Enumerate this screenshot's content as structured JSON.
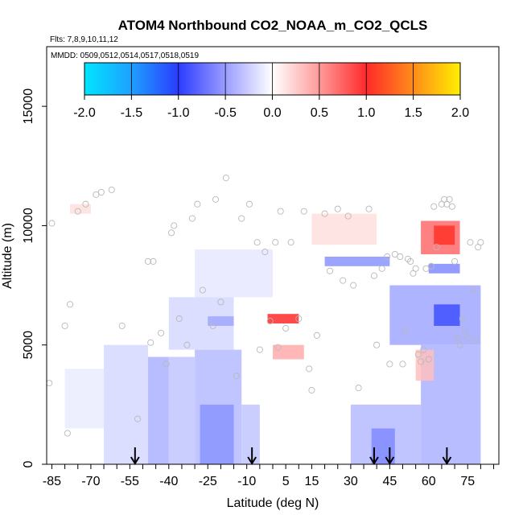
{
  "chart_data": {
    "type": "heatmap",
    "title": "ATOM4 Northbound CO2_NOAA_m_CO2_QCLS",
    "flights_label": "Flts: 7,8,9,10,11,12",
    "dates_label": "MMDD: 0509,0512,0514,0517,0518,0519",
    "xlabel": "Latitude (deg N)",
    "ylabel": "Altitude (m)",
    "xlim": [
      -87,
      87
    ],
    "ylim": [
      0,
      17500
    ],
    "xticks": [
      -85,
      -70,
      -55,
      -40,
      -25,
      -10,
      5,
      15,
      30,
      45,
      60,
      75
    ],
    "yticks": [
      0,
      5000,
      10000,
      15000
    ],
    "colorbar": {
      "range": [
        -2.0,
        2.0
      ],
      "ticks": [
        "-2.0",
        "-1.5",
        "-1.0",
        "-0.5",
        "0.0",
        "0.5",
        "1.0",
        "1.5",
        "2.0"
      ]
    },
    "arrows_lat": [
      -53,
      -8,
      39,
      45,
      67
    ],
    "cells": [
      {
        "lat0": -65,
        "lat1": -48,
        "alt0": 0,
        "alt1": 5000,
        "v": -0.2
      },
      {
        "lat0": -48,
        "lat1": -40,
        "alt0": 0,
        "alt1": 4500,
        "v": -0.4
      },
      {
        "lat0": -40,
        "lat1": -30,
        "alt0": 0,
        "alt1": 4500,
        "v": -0.3
      },
      {
        "lat0": -30,
        "lat1": -12,
        "alt0": 0,
        "alt1": 4800,
        "v": -0.35
      },
      {
        "lat0": -28,
        "lat1": -15,
        "alt0": 0,
        "alt1": 2500,
        "v": -0.55
      },
      {
        "lat0": -12,
        "lat1": -5,
        "alt0": 0,
        "alt1": 2500,
        "v": -0.3
      },
      {
        "lat0": -80,
        "lat1": -65,
        "alt0": 1500,
        "alt1": 4000,
        "v": -0.1
      },
      {
        "lat0": -40,
        "lat1": -15,
        "alt0": 4800,
        "alt1": 7000,
        "v": -0.2
      },
      {
        "lat0": -25,
        "lat1": -15,
        "alt0": 5800,
        "alt1": 6200,
        "v": -0.45
      },
      {
        "lat0": -30,
        "lat1": 0,
        "alt0": 7000,
        "alt1": 9000,
        "v": -0.12
      },
      {
        "lat0": -2,
        "lat1": 10,
        "alt0": 5900,
        "alt1": 6300,
        "v": 1.0
      },
      {
        "lat0": 0,
        "lat1": 12,
        "alt0": 4400,
        "alt1": 5000,
        "v": 0.4
      },
      {
        "lat0": 20,
        "lat1": 45,
        "alt0": 8300,
        "alt1": 8700,
        "v": -0.55
      },
      {
        "lat0": 15,
        "lat1": 40,
        "alt0": 9200,
        "alt1": 10500,
        "v": 0.15
      },
      {
        "lat0": 30,
        "lat1": 57,
        "alt0": 0,
        "alt1": 2500,
        "v": -0.35
      },
      {
        "lat0": 38,
        "lat1": 47,
        "alt0": 0,
        "alt1": 1500,
        "v": -0.6
      },
      {
        "lat0": 57,
        "lat1": 80,
        "alt0": 0,
        "alt1": 5000,
        "v": -0.4
      },
      {
        "lat0": 45,
        "lat1": 80,
        "alt0": 5000,
        "alt1": 7500,
        "v": -0.45
      },
      {
        "lat0": 62,
        "lat1": 72,
        "alt0": 5800,
        "alt1": 6700,
        "v": -0.9
      },
      {
        "lat0": 60,
        "lat1": 72,
        "alt0": 8000,
        "alt1": 8400,
        "v": -0.6
      },
      {
        "lat0": 57,
        "lat1": 72,
        "alt0": 8800,
        "alt1": 10200,
        "v": 0.7
      },
      {
        "lat0": 62,
        "lat1": 70,
        "alt0": 9200,
        "alt1": 10000,
        "v": 1.05
      },
      {
        "lat0": 55,
        "lat1": 62,
        "alt0": 3500,
        "alt1": 4800,
        "v": 0.3
      },
      {
        "lat0": -78,
        "lat1": -70,
        "alt0": 10500,
        "alt1": 10900,
        "v": 0.15
      }
    ],
    "points": [
      [
        -86,
        3400
      ],
      [
        -85,
        10100
      ],
      [
        -80,
        5800
      ],
      [
        -79,
        1300
      ],
      [
        -78,
        6700
      ],
      [
        -75,
        10600
      ],
      [
        -72,
        10900
      ],
      [
        -68,
        11300
      ],
      [
        -66,
        11400
      ],
      [
        -62,
        11500
      ],
      [
        -58,
        5800
      ],
      [
        -52,
        1900
      ],
      [
        -48,
        8500
      ],
      [
        -47,
        5100
      ],
      [
        -46,
        8500
      ],
      [
        -43,
        5500
      ],
      [
        -41,
        4200
      ],
      [
        -39,
        9700
      ],
      [
        -38,
        10000
      ],
      [
        -36,
        6100
      ],
      [
        -33,
        5000
      ],
      [
        -31,
        10300
      ],
      [
        -29,
        10900
      ],
      [
        -27,
        7300
      ],
      [
        -23,
        5800
      ],
      [
        -22,
        11100
      ],
      [
        -20,
        6800
      ],
      [
        -18,
        12000
      ],
      [
        -14,
        3700
      ],
      [
        -12,
        10300
      ],
      [
        -9,
        10900
      ],
      [
        -6,
        9300
      ],
      [
        -5,
        4800
      ],
      [
        -3,
        8900
      ],
      [
        -1,
        6000
      ],
      [
        1,
        9300
      ],
      [
        2,
        4900
      ],
      [
        3,
        10600
      ],
      [
        5,
        5700
      ],
      [
        7,
        9300
      ],
      [
        10,
        6100
      ],
      [
        12,
        10600
      ],
      [
        14,
        4000
      ],
      [
        15,
        3100
      ],
      [
        17,
        5400
      ],
      [
        20,
        10500
      ],
      [
        22,
        8100
      ],
      [
        25,
        10700
      ],
      [
        27,
        7700
      ],
      [
        29,
        10400
      ],
      [
        31,
        7500
      ],
      [
        33,
        3200
      ],
      [
        37,
        10700
      ],
      [
        39,
        7900
      ],
      [
        40,
        5000
      ],
      [
        42,
        8200
      ],
      [
        44,
        8700
      ],
      [
        45,
        4200
      ],
      [
        47,
        8800
      ],
      [
        49,
        8700
      ],
      [
        50,
        4200
      ],
      [
        51,
        5600
      ],
      [
        52,
        8600
      ],
      [
        53,
        8500
      ],
      [
        54,
        8000
      ],
      [
        55,
        8200
      ],
      [
        56,
        4600
      ],
      [
        57,
        4300
      ],
      [
        58,
        4800
      ],
      [
        59,
        8200
      ],
      [
        60,
        4400
      ],
      [
        61,
        8300
      ],
      [
        62,
        10800
      ],
      [
        63,
        9100
      ],
      [
        65,
        10900
      ],
      [
        66,
        11100
      ],
      [
        67,
        10900
      ],
      [
        68,
        11100
      ],
      [
        69,
        10800
      ],
      [
        70,
        8500
      ],
      [
        71,
        5300
      ],
      [
        72,
        5000
      ],
      [
        73,
        6100
      ],
      [
        74,
        5600
      ],
      [
        75,
        5300
      ],
      [
        76,
        9300
      ],
      [
        77,
        7300
      ],
      [
        78,
        5200
      ],
      [
        80,
        9300
      ],
      [
        79,
        9100
      ]
    ]
  }
}
